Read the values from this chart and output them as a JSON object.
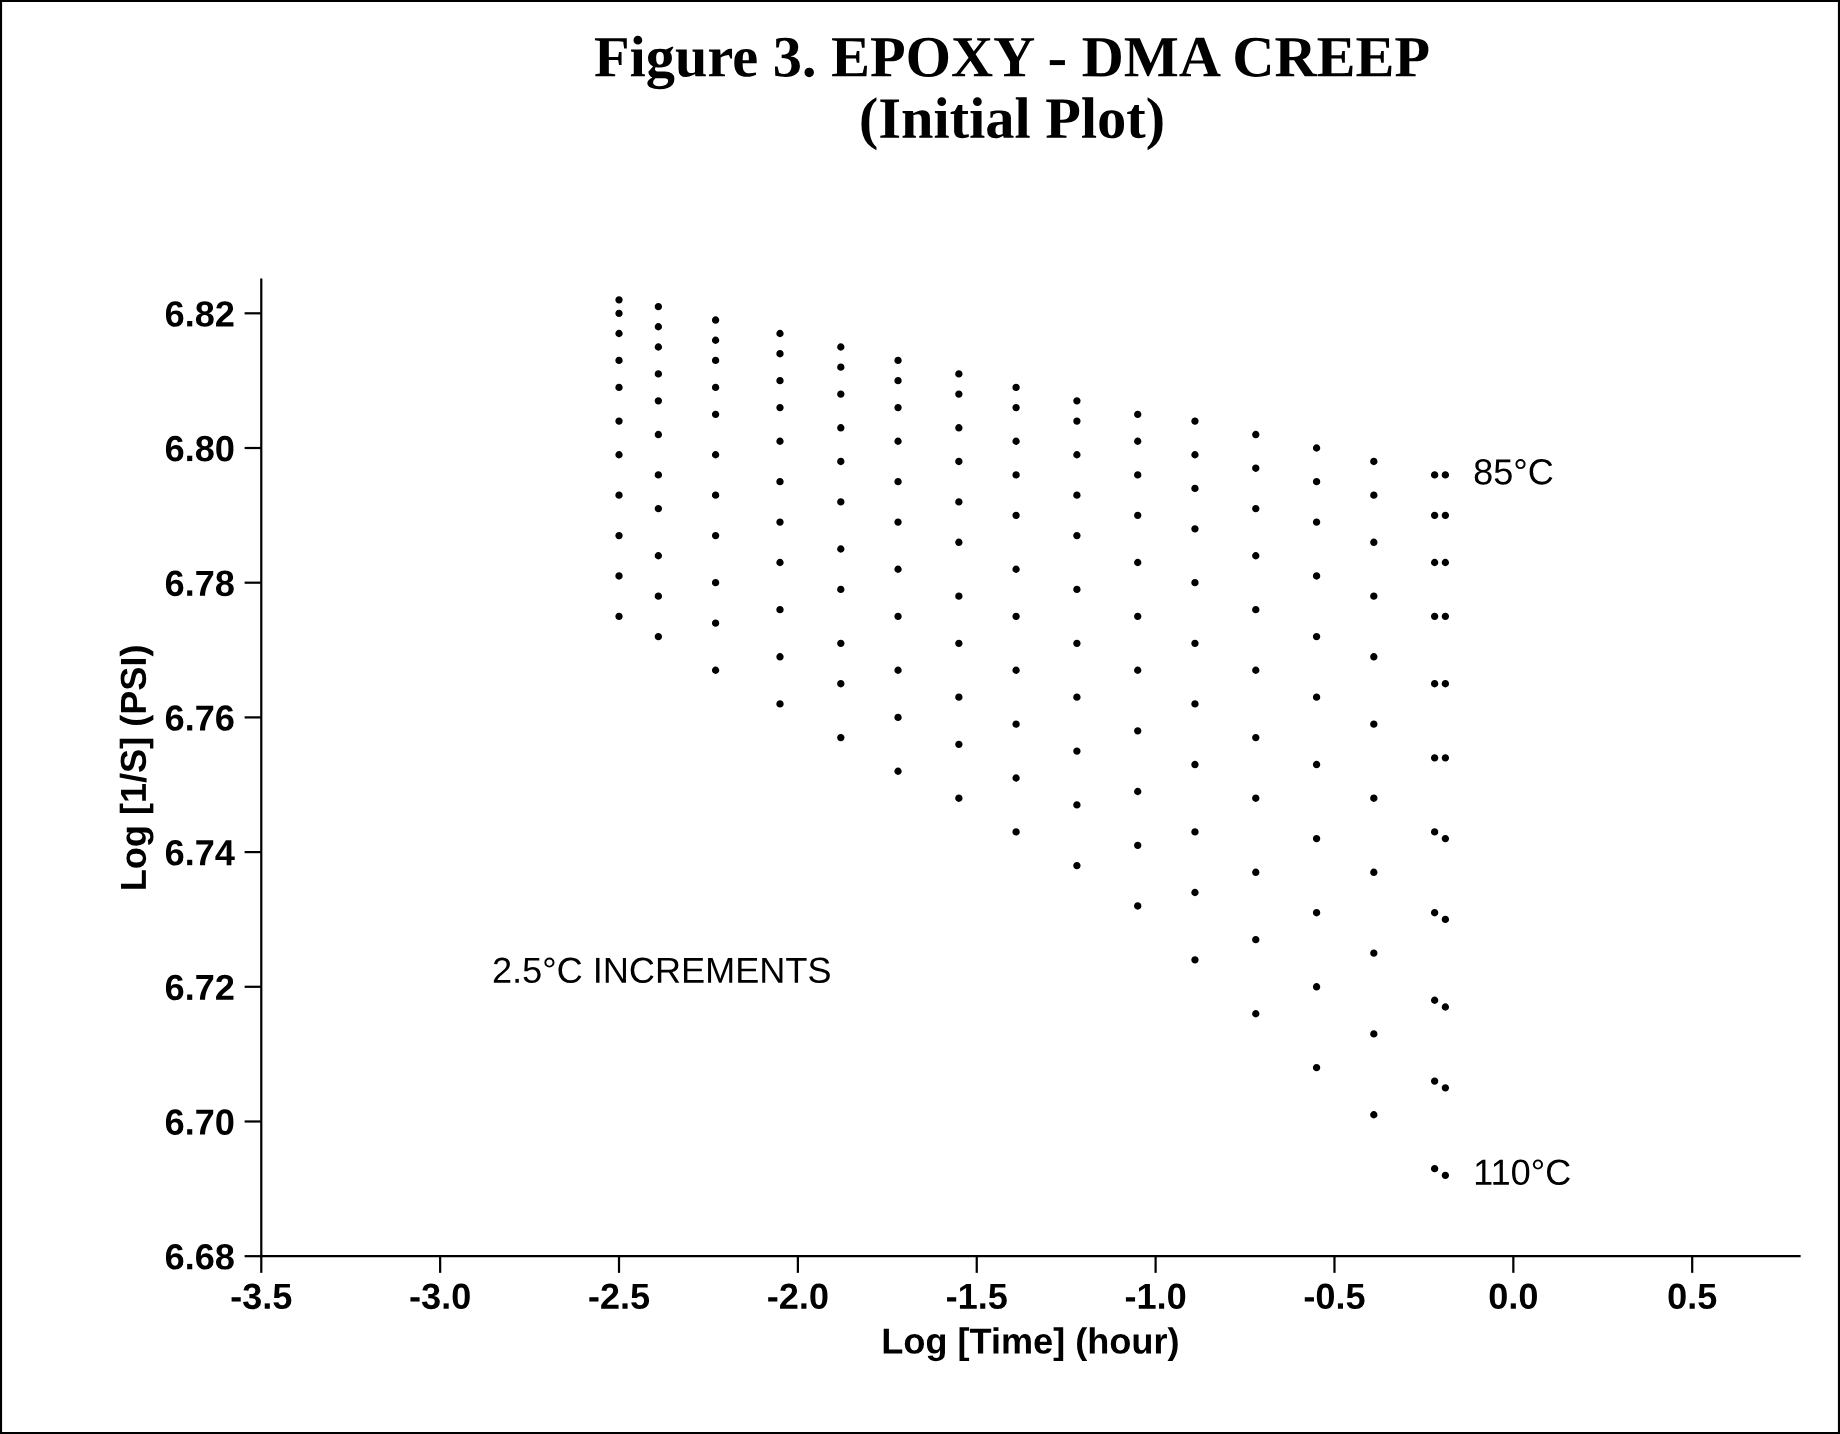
{
  "chart_data": {
    "type": "scatter",
    "title": "Figure 3. EPOXY - DMA CREEP\n(Initial Plot)",
    "xlabel": "Log [Time] (hour)",
    "ylabel": "Log [1/S] (PSI)",
    "x": [
      -2.5,
      -2.39,
      -2.23,
      -2.05,
      -1.88,
      -1.72,
      -1.55,
      -1.39,
      -1.22,
      -1.05,
      -0.89,
      -0.72,
      -0.55,
      -0.39,
      -0.22,
      -0.19
    ],
    "series": [
      {
        "color": "#000000",
        "values": [
          6.822,
          6.821,
          6.819,
          6.817,
          6.815,
          6.813,
          6.811,
          6.809,
          6.807,
          6.805,
          6.804,
          6.802,
          6.8,
          6.798,
          6.796,
          6.796
        ]
      },
      {
        "color": "#000000",
        "values": [
          6.82,
          6.818,
          6.816,
          6.814,
          6.812,
          6.81,
          6.808,
          6.806,
          6.804,
          6.801,
          6.799,
          6.797,
          6.795,
          6.793,
          6.79,
          6.79
        ]
      },
      {
        "color": "#000000",
        "values": [
          6.817,
          6.815,
          6.813,
          6.81,
          6.808,
          6.806,
          6.803,
          6.801,
          6.799,
          6.796,
          6.794,
          6.791,
          6.789,
          6.786,
          6.783,
          6.783
        ]
      },
      {
        "color": "#000000",
        "values": [
          6.813,
          6.811,
          6.809,
          6.806,
          6.803,
          6.801,
          6.798,
          6.796,
          6.793,
          6.79,
          6.788,
          6.784,
          6.781,
          6.778,
          6.775,
          6.775
        ]
      },
      {
        "color": "#000000",
        "values": [
          6.809,
          6.807,
          6.805,
          6.801,
          6.798,
          6.795,
          6.792,
          6.79,
          6.787,
          6.783,
          6.78,
          6.776,
          6.772,
          6.769,
          6.765,
          6.765
        ]
      },
      {
        "color": "#000000",
        "values": [
          6.804,
          6.802,
          6.799,
          6.795,
          6.792,
          6.789,
          6.786,
          6.782,
          6.779,
          6.775,
          6.771,
          6.767,
          6.763,
          6.759,
          6.754,
          6.754
        ]
      },
      {
        "color": "#000000",
        "values": [
          6.799,
          6.796,
          6.793,
          6.789,
          6.785,
          6.782,
          6.778,
          6.775,
          6.771,
          6.767,
          6.762,
          6.757,
          6.753,
          6.748,
          6.743,
          6.742
        ]
      },
      {
        "color": "#000000",
        "values": [
          6.793,
          6.791,
          6.787,
          6.783,
          6.779,
          6.775,
          6.771,
          6.767,
          6.763,
          6.758,
          6.753,
          6.748,
          6.742,
          6.737,
          6.731,
          6.73
        ]
      },
      {
        "color": "#000000",
        "values": [
          6.787,
          6.784,
          6.78,
          6.776,
          6.771,
          6.767,
          6.763,
          6.759,
          6.755,
          6.749,
          6.743,
          6.737,
          6.731,
          6.725,
          6.718,
          6.717
        ]
      },
      {
        "color": "#000000",
        "values": [
          6.781,
          6.778,
          6.774,
          6.769,
          6.765,
          6.76,
          6.756,
          6.751,
          6.747,
          6.741,
          6.734,
          6.727,
          6.72,
          6.713,
          6.706,
          6.705
        ]
      },
      {
        "color": "#000000",
        "values": [
          6.775,
          6.772,
          6.767,
          6.762,
          6.757,
          6.752,
          6.748,
          6.743,
          6.738,
          6.732,
          6.724,
          6.716,
          6.708,
          6.701,
          6.693,
          6.692
        ]
      }
    ],
    "annotations": [
      {
        "text": "85°C",
        "x": -0.19,
        "y": 6.796
      },
      {
        "text": "110°C",
        "x": -0.19,
        "y": 6.692
      },
      "2.5°C INCREMENTS"
    ],
    "xlim": [
      -3.5,
      0.8
    ],
    "xticks": [
      {
        "value": -3.5,
        "label": "-3.5"
      },
      {
        "value": -3.0,
        "label": "-3.0"
      },
      {
        "value": -2.5,
        "label": "-2.5"
      },
      {
        "value": -2.0,
        "label": "-2.0"
      },
      {
        "value": -1.5,
        "label": "-1.5"
      },
      {
        "value": -1.0,
        "label": "-1.0"
      },
      {
        "value": -0.5,
        "label": "-0.5"
      },
      {
        "value": 0.0,
        "label": "0.0"
      },
      {
        "value": 0.5,
        "label": "0.5"
      }
    ],
    "ylim": [
      6.68,
      6.825
    ],
    "yticks": [
      {
        "value": 6.68,
        "label": "6.68"
      },
      {
        "value": 6.7,
        "label": "6.70"
      },
      {
        "value": 6.72,
        "label": "6.72"
      },
      {
        "value": 6.74,
        "label": "6.74"
      },
      {
        "value": 6.76,
        "label": "6.76"
      },
      {
        "value": 6.78,
        "label": "6.78"
      },
      {
        "value": 6.8,
        "label": "6.80"
      },
      {
        "value": 6.82,
        "label": "6.82"
      }
    ],
    "marker": "circle",
    "grid": false,
    "legend": false
  }
}
